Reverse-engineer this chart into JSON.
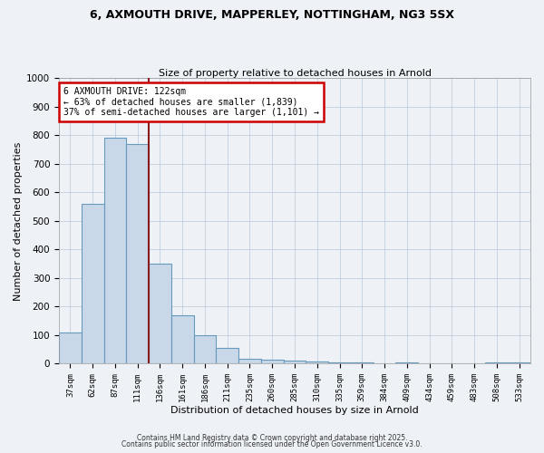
{
  "title_line1": "6, AXMOUTH DRIVE, MAPPERLEY, NOTTINGHAM, NG3 5SX",
  "title_line2": "Size of property relative to detached houses in Arnold",
  "xlabel": "Distribution of detached houses by size in Arnold",
  "ylabel": "Number of detached properties",
  "categories": [
    "37sqm",
    "62sqm",
    "87sqm",
    "111sqm",
    "136sqm",
    "161sqm",
    "186sqm",
    "211sqm",
    "235sqm",
    "260sqm",
    "285sqm",
    "310sqm",
    "335sqm",
    "359sqm",
    "384sqm",
    "409sqm",
    "434sqm",
    "459sqm",
    "483sqm",
    "508sqm",
    "533sqm"
  ],
  "values": [
    110,
    560,
    790,
    770,
    350,
    170,
    100,
    55,
    18,
    13,
    10,
    8,
    5,
    3,
    2,
    5,
    1,
    1,
    1,
    5,
    5
  ],
  "bar_color": "#c8d8e8",
  "bar_edge_color": "#6699bb",
  "vline_x": 3.5,
  "vline_color": "#8b1a1a",
  "annotation_text": "6 AXMOUTH DRIVE: 122sqm\n← 63% of detached houses are smaller (1,839)\n37% of semi-detached houses are larger (1,101) →",
  "annotation_box_color": "#ffffff",
  "annotation_box_edge": "#cc0000",
  "ylim": [
    0,
    1000
  ],
  "yticks": [
    0,
    100,
    200,
    300,
    400,
    500,
    600,
    700,
    800,
    900,
    1000
  ],
  "background_color": "#eef2f7",
  "footer_line1": "Contains HM Land Registry data © Crown copyright and database right 2025.",
  "footer_line2": "Contains public sector information licensed under the Open Government Licence v3.0."
}
